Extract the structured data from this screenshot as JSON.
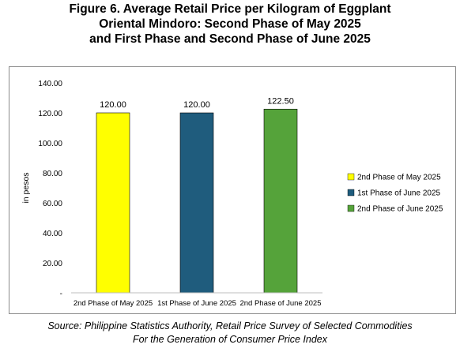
{
  "title_lines": [
    "Figure 6. Average Retail Price per Kilogram of Eggplant",
    "Oriental Mindoro: Second Phase of May 2025",
    "and First Phase and Second Phase of June 2025"
  ],
  "source_lines": [
    "Source: Philippine Statistics Authority, Retail Price Survey of Selected Commodities",
    "For the Generation of Consumer Price Index"
  ],
  "chart_data": {
    "type": "bar",
    "title": "Figure 6. Average Retail Price per Kilogram of Eggplant Oriental Mindoro: Second Phase of May 2025 and First Phase and Second Phase of June 2025",
    "categories": [
      "2nd Phase of May 2025",
      "1st Phase of June 2025",
      "2nd Phase of June 2025"
    ],
    "values": [
      120.0,
      120.0,
      122.5
    ],
    "value_labels": [
      "120.00",
      "120.00",
      "122.50"
    ],
    "colors": [
      "#ffff00",
      "#1f5c7d",
      "#55a33a"
    ],
    "ylabel": "in pesos",
    "xlabel": "",
    "ylim": [
      0,
      140
    ],
    "yticks": [
      0,
      20,
      40,
      60,
      80,
      100,
      120,
      140
    ],
    "ytick_labels": [
      "-",
      "20.00",
      "40.00",
      "60.00",
      "80.00",
      "100.00",
      "120.00",
      "140.00"
    ],
    "grid": false,
    "legend": {
      "position": "right",
      "entries": [
        "2nd Phase of May 2025",
        "1st Phase of June 2025",
        "2nd Phase of June 2025"
      ]
    }
  }
}
